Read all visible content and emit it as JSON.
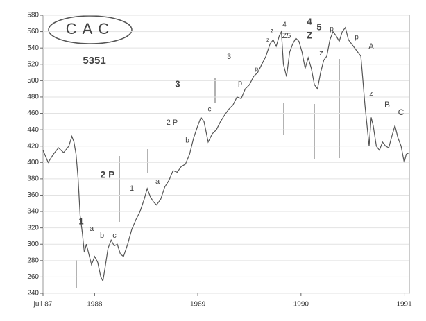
{
  "chart_data": {
    "type": "line",
    "x": [
      1987.5,
      1987.55,
      1987.6,
      1987.65,
      1987.7,
      1987.75,
      1987.78,
      1987.8,
      1987.82,
      1987.84,
      1987.86,
      1987.88,
      1987.9,
      1987.92,
      1987.95,
      1987.97,
      1988.0,
      1988.03,
      1988.06,
      1988.08,
      1988.1,
      1988.13,
      1988.16,
      1988.19,
      1988.22,
      1988.25,
      1988.28,
      1988.32,
      1988.36,
      1988.4,
      1988.44,
      1988.48,
      1988.51,
      1988.54,
      1988.57,
      1988.6,
      1988.64,
      1988.68,
      1988.72,
      1988.76,
      1988.8,
      1988.84,
      1988.88,
      1988.92,
      1988.96,
      1989.0,
      1989.03,
      1989.06,
      1989.1,
      1989.14,
      1989.18,
      1989.22,
      1989.26,
      1989.3,
      1989.34,
      1989.38,
      1989.42,
      1989.46,
      1989.5,
      1989.54,
      1989.58,
      1989.62,
      1989.66,
      1989.7,
      1989.73,
      1989.76,
      1989.79,
      1989.81,
      1989.83,
      1989.86,
      1989.89,
      1989.92,
      1989.95,
      1989.98,
      1990.01,
      1990.04,
      1990.07,
      1990.1,
      1990.13,
      1990.16,
      1990.19,
      1990.22,
      1990.25,
      1990.28,
      1990.31,
      1990.34,
      1990.37,
      1990.4,
      1990.43,
      1990.46,
      1990.49,
      1990.52,
      1990.55,
      1990.58,
      1990.6,
      1990.62,
      1990.64,
      1990.66,
      1990.68,
      1990.7,
      1990.73,
      1990.76,
      1990.79,
      1990.82,
      1990.85,
      1990.88,
      1990.91,
      1990.94,
      1990.97,
      1991.0,
      1991.02,
      1991.05
    ],
    "values": [
      415,
      400,
      410,
      418,
      412,
      420,
      432,
      425,
      410,
      380,
      335,
      315,
      290,
      300,
      285,
      275,
      285,
      278,
      260,
      255,
      270,
      295,
      305,
      298,
      300,
      288,
      285,
      300,
      318,
      330,
      340,
      355,
      368,
      358,
      352,
      348,
      355,
      370,
      378,
      390,
      388,
      395,
      398,
      410,
      430,
      445,
      455,
      450,
      425,
      435,
      440,
      450,
      458,
      465,
      470,
      480,
      478,
      490,
      495,
      505,
      510,
      520,
      530,
      545,
      550,
      542,
      555,
      560,
      520,
      505,
      535,
      545,
      552,
      548,
      535,
      515,
      528,
      515,
      495,
      490,
      510,
      525,
      530,
      550,
      560,
      555,
      548,
      560,
      565,
      550,
      545,
      540,
      535,
      530,
      500,
      470,
      445,
      420,
      455,
      445,
      420,
      415,
      425,
      420,
      418,
      432,
      445,
      430,
      420,
      400,
      410,
      412
    ],
    "color": "#555555",
    "xlim": [
      1987.5,
      1991.05
    ],
    "xticks": [
      {
        "value": 1987.5,
        "label": "juil-87"
      },
      1988,
      1989,
      1990,
      1991
    ],
    "ylim": [
      240,
      580
    ],
    "yticks": [
      240,
      260,
      280,
      300,
      320,
      340,
      360,
      380,
      400,
      420,
      440,
      460,
      480,
      500,
      520,
      540,
      560,
      580
    ],
    "grid": true,
    "annotations": [
      "CAC",
      "5351",
      "1",
      "a",
      "b",
      "c",
      "2 P",
      "1",
      "a",
      "2 P",
      "b",
      "3",
      "c",
      "3",
      "p",
      "p",
      "z",
      "z",
      "4",
      "Z5",
      "4",
      "Z",
      "5",
      "z",
      "p",
      "p",
      "A",
      "z",
      "B",
      "C"
    ]
  }
}
